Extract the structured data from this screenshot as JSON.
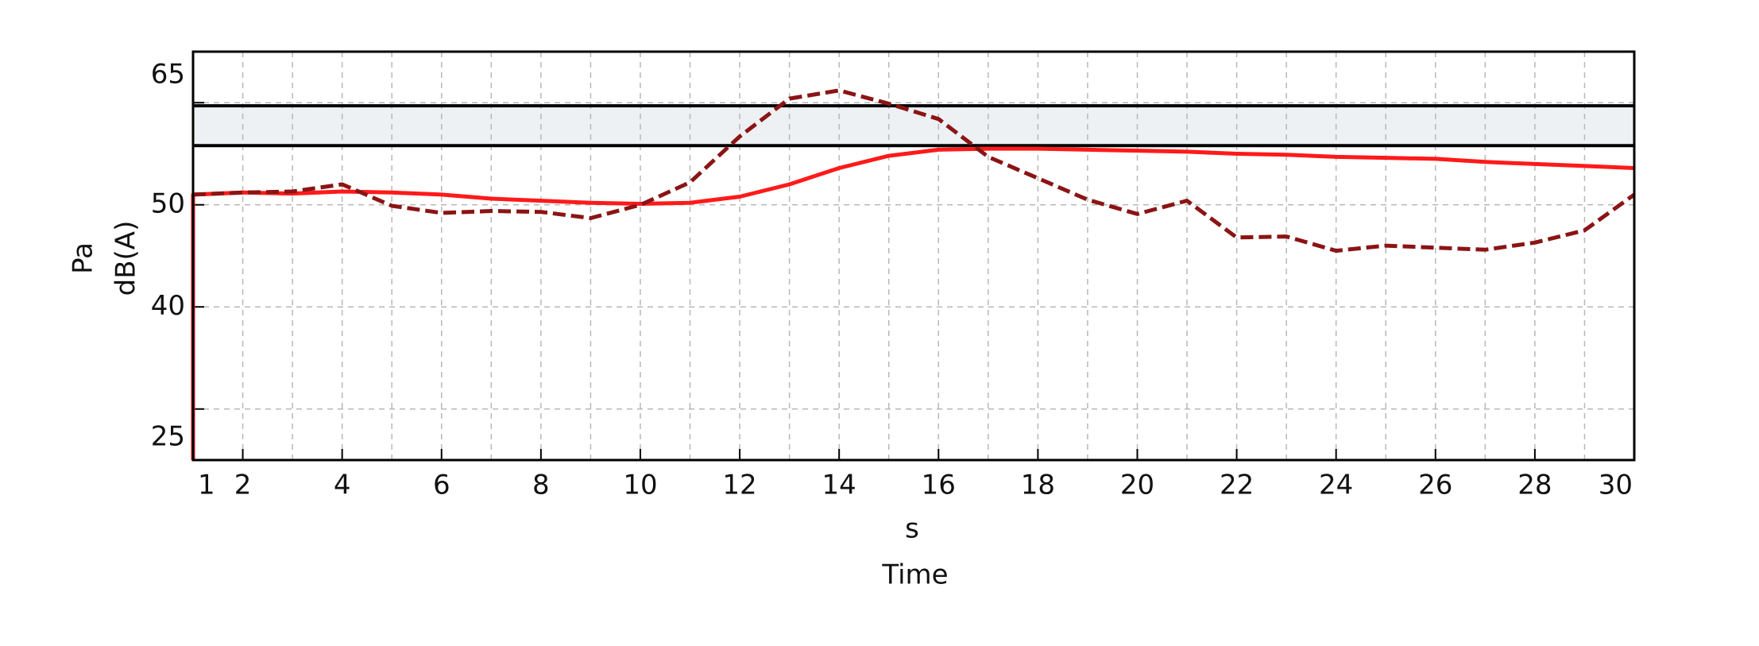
{
  "chart_data": {
    "type": "line",
    "y_label_lines": [
      "Pa",
      "dB(A)"
    ],
    "x_label_lines": [
      "s",
      "Time"
    ],
    "x": [
      1,
      1,
      2,
      3,
      4,
      5,
      6,
      7,
      8,
      9,
      10,
      11,
      12,
      13,
      14,
      15,
      16,
      17,
      18,
      19,
      20,
      21,
      22,
      23,
      24,
      25,
      26,
      27,
      28,
      29,
      30
    ],
    "series": [
      {
        "color": "#ff1a1a",
        "dash": false,
        "values": [
          25,
          51.0,
          51.2,
          51.1,
          51.3,
          51.2,
          51.0,
          50.6,
          50.4,
          50.2,
          50.1,
          50.2,
          50.8,
          52.0,
          53.6,
          54.8,
          55.4,
          55.5,
          55.5,
          55.4,
          55.3,
          55.2,
          55.0,
          54.9,
          54.7,
          54.6,
          54.5,
          54.2,
          54.0,
          53.8,
          53.6
        ]
      },
      {
        "color": "#8b1414",
        "dash": true,
        "values": [
          null,
          51.0,
          51.2,
          51.3,
          52.0,
          49.9,
          49.2,
          49.4,
          49.3,
          48.7,
          50.0,
          52.2,
          56.7,
          60.4,
          61.2,
          59.9,
          58.4,
          54.7,
          52.6,
          50.5,
          49.1,
          50.4,
          46.8,
          46.9,
          45.5,
          46.0,
          45.8,
          45.6,
          46.3,
          47.5,
          51.0
        ]
      }
    ],
    "band": [
      55.8,
      59.7
    ],
    "xlim": [
      1,
      30
    ],
    "ylim": [
      25,
      65
    ],
    "xticks": [
      1,
      2,
      4,
      6,
      8,
      10,
      12,
      14,
      16,
      18,
      20,
      22,
      24,
      26,
      28,
      30
    ],
    "yticks": [
      25,
      40,
      50,
      65
    ],
    "xgrid": [
      2,
      3,
      4,
      5,
      6,
      7,
      8,
      9,
      10,
      11,
      12,
      13,
      14,
      15,
      16,
      17,
      18,
      19,
      20,
      21,
      22,
      23,
      24,
      25,
      26,
      27,
      28,
      29
    ],
    "ygrid": [
      30,
      40,
      50,
      60
    ],
    "grid": true
  }
}
